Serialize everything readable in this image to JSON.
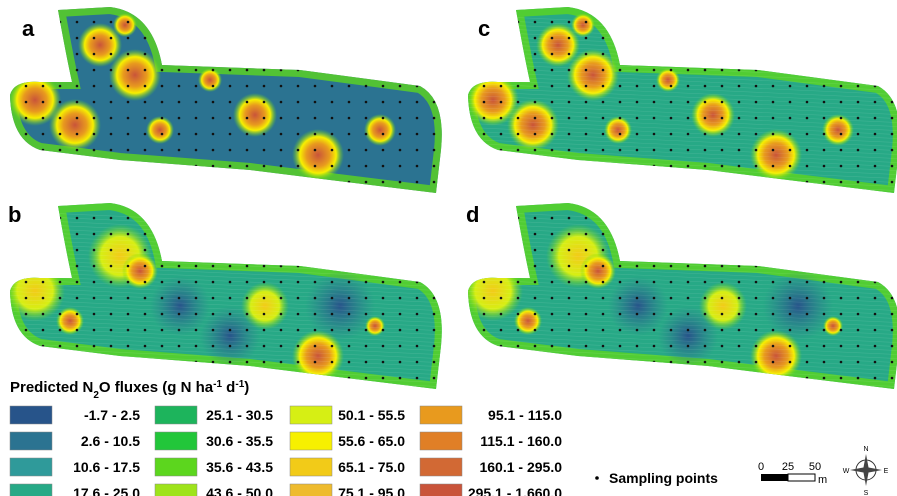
{
  "panels": [
    "a",
    "b",
    "c",
    "d"
  ],
  "legend": {
    "title": [
      "Predicted N",
      "2",
      "O fluxes (g N ha",
      "-1",
      " d",
      "-1",
      ")"
    ],
    "items": [
      {
        "label": "-1.7 - 2.5",
        "color": "#27548a"
      },
      {
        "label": "2.6 - 10.5",
        "color": "#2b7391"
      },
      {
        "label": "10.6 - 17.5",
        "color": "#2f9a9a"
      },
      {
        "label": "17.6 - 25.0",
        "color": "#27a986"
      },
      {
        "label": "25.1 - 30.5",
        "color": "#1db45c"
      },
      {
        "label": "30.6 - 35.5",
        "color": "#22c63a"
      },
      {
        "label": "35.6 - 43.5",
        "color": "#5cd61e"
      },
      {
        "label": "43.6 - 50.0",
        "color": "#9ee31b"
      },
      {
        "label": "50.1 - 55.5",
        "color": "#d6ef14"
      },
      {
        "label": "55.6 - 65.0",
        "color": "#f7f000"
      },
      {
        "label": "65.1 - 75.0",
        "color": "#f2cb18"
      },
      {
        "label": "75.1 - 95.0",
        "color": "#eebb2e"
      },
      {
        "label": "95.1 - 115.0",
        "color": "#e89a1e"
      },
      {
        "label": "115.1 - 160.0",
        "color": "#e07f26"
      },
      {
        "label": "160.1 - 295.0",
        "color": "#d26934"
      },
      {
        "label": "295.1 - 1,660.0",
        "color": "#c9543a"
      }
    ]
  },
  "sampling_points": "Sampling points",
  "scale": {
    "labels": [
      "0",
      "25",
      "50"
    ],
    "unit": "m"
  },
  "compass": {
    "n": "N",
    "s": "S",
    "e": "E",
    "w": "W"
  }
}
